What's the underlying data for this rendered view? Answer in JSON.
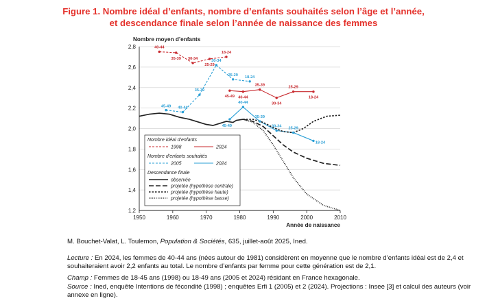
{
  "figure": {
    "title_line1": "Figure 1. Nombre idéal d’enfants, nombre d’enfants souhaités selon l’âge et l’année,",
    "title_line2": "et descendance finale selon l’année de naissance des femmes"
  },
  "colors": {
    "title": "#e4312b",
    "ideal": "#c8282d",
    "souhaite": "#2a9fd6",
    "descendance": "#222222"
  },
  "chart_data": {
    "type": "line",
    "ylabel": "Nombre moyen d’enfants",
    "xlabel": "Année de naissance",
    "xlim": [
      1950,
      2010
    ],
    "ylim": [
      1.2,
      2.8
    ],
    "x_ticks": [
      "1950",
      "1960",
      "1970",
      "1980",
      "1990",
      "2000",
      "2010"
    ],
    "y_ticks": [
      "1,2",
      "1,4",
      "1,6",
      "1,8",
      "2,0",
      "2,2",
      "2,4",
      "2,6",
      "2,8"
    ],
    "legend": {
      "group1_title": "Nombre idéal d’enfants",
      "group2_title": "Nombre d’enfants souhaités",
      "group3_title": "Descendance finale",
      "ideal_1998": "1998",
      "ideal_2024": "2024",
      "souhaite_2005": "2005",
      "souhaite_2024": "2024",
      "observee": "observée",
      "proj_centrale": "projetée (hypothèse centrale)",
      "proj_haute": "projetée (hypothèse haute)",
      "proj_basse": "projetée (hypothèse basse)"
    },
    "series": [
      {
        "name": "1998",
        "group": "ideal",
        "style": "dashed",
        "color": "#c8282d",
        "points": [
          {
            "x": 1956,
            "y": 2.75,
            "label": "40-44"
          },
          {
            "x": 1961,
            "y": 2.74,
            "label": "35-39"
          },
          {
            "x": 1966,
            "y": 2.64,
            "label": "30-34"
          },
          {
            "x": 1971,
            "y": 2.68,
            "label": "25-29"
          },
          {
            "x": 1976,
            "y": 2.7,
            "label": "18-24"
          }
        ]
      },
      {
        "name": "2024",
        "group": "ideal",
        "style": "solid",
        "color": "#c8282d",
        "points": [
          {
            "x": 1977,
            "y": 2.37,
            "label": "45-49"
          },
          {
            "x": 1981,
            "y": 2.36,
            "label": "40-44"
          },
          {
            "x": 1986,
            "y": 2.38,
            "label": "35-39"
          },
          {
            "x": 1991,
            "y": 2.3,
            "label": "30-34"
          },
          {
            "x": 1996,
            "y": 2.36,
            "label": "25-29"
          },
          {
            "x": 2002,
            "y": 2.36,
            "label": "18-24"
          }
        ]
      },
      {
        "name": "2005",
        "group": "souhaite",
        "style": "dashed",
        "color": "#2a9fd6",
        "points": [
          {
            "x": 1958,
            "y": 2.18,
            "label": "45-49"
          },
          {
            "x": 1963,
            "y": 2.16,
            "label": "40-44"
          },
          {
            "x": 1968,
            "y": 2.33,
            "label": "35-39"
          },
          {
            "x": 1973,
            "y": 2.62,
            "label": "30-34"
          },
          {
            "x": 1978,
            "y": 2.48,
            "label": "25-29"
          },
          {
            "x": 1983,
            "y": 2.46,
            "label": "18-24"
          }
        ]
      },
      {
        "name": "2024",
        "group": "souhaite",
        "style": "solid",
        "color": "#2a9fd6",
        "points": [
          {
            "x": 1977,
            "y": 2.09,
            "label": "45-49"
          },
          {
            "x": 1981,
            "y": 2.21,
            "label": "40-44"
          },
          {
            "x": 1986,
            "y": 2.07,
            "label": "35-39"
          },
          {
            "x": 1991,
            "y": 1.98,
            "label": "30-34"
          },
          {
            "x": 1996,
            "y": 1.96,
            "label": "25-29"
          },
          {
            "x": 2002,
            "y": 1.88,
            "label": "18-24"
          }
        ]
      },
      {
        "name": "observée",
        "group": "descendance",
        "style": "solid",
        "color": "#222222",
        "points": [
          {
            "x": 1950,
            "y": 2.12
          },
          {
            "x": 1953,
            "y": 2.14
          },
          {
            "x": 1956,
            "y": 2.15
          },
          {
            "x": 1959,
            "y": 2.14
          },
          {
            "x": 1962,
            "y": 2.11
          },
          {
            "x": 1965,
            "y": 2.09
          },
          {
            "x": 1968,
            "y": 2.06
          },
          {
            "x": 1970,
            "y": 2.04
          },
          {
            "x": 1972,
            "y": 2.03
          },
          {
            "x": 1974,
            "y": 2.05
          },
          {
            "x": 1976,
            "y": 2.07
          },
          {
            "x": 1978,
            "y": 2.06
          },
          {
            "x": 1979,
            "y": 2.08
          },
          {
            "x": 1981,
            "y": 2.09
          }
        ]
      },
      {
        "name": "projetée (hypothèse centrale)",
        "group": "descendance",
        "style": "longdash",
        "color": "#222222",
        "points": [
          {
            "x": 1981,
            "y": 2.09
          },
          {
            "x": 1984,
            "y": 2.07
          },
          {
            "x": 1987,
            "y": 2.02
          },
          {
            "x": 1990,
            "y": 1.93
          },
          {
            "x": 1993,
            "y": 1.84
          },
          {
            "x": 1996,
            "y": 1.77
          },
          {
            "x": 2000,
            "y": 1.71
          },
          {
            "x": 2005,
            "y": 1.66
          },
          {
            "x": 2010,
            "y": 1.64
          }
        ]
      },
      {
        "name": "projetée (hypothèse haute)",
        "group": "descendance",
        "style": "shortdash",
        "color": "#222222",
        "points": [
          {
            "x": 1981,
            "y": 2.09
          },
          {
            "x": 1984,
            "y": 2.09
          },
          {
            "x": 1987,
            "y": 2.06
          },
          {
            "x": 1990,
            "y": 2.01
          },
          {
            "x": 1993,
            "y": 1.97
          },
          {
            "x": 1996,
            "y": 1.96
          },
          {
            "x": 1999,
            "y": 2.0
          },
          {
            "x": 2002,
            "y": 2.07
          },
          {
            "x": 2006,
            "y": 2.12
          },
          {
            "x": 2010,
            "y": 2.13
          }
        ]
      },
      {
        "name": "projetée (hypothèse basse)",
        "group": "descendance",
        "style": "dotted",
        "color": "#222222",
        "points": [
          {
            "x": 1981,
            "y": 2.09
          },
          {
            "x": 1984,
            "y": 2.06
          },
          {
            "x": 1987,
            "y": 1.98
          },
          {
            "x": 1990,
            "y": 1.84
          },
          {
            "x": 1993,
            "y": 1.68
          },
          {
            "x": 1996,
            "y": 1.52
          },
          {
            "x": 2000,
            "y": 1.36
          },
          {
            "x": 2005,
            "y": 1.25
          },
          {
            "x": 2010,
            "y": 1.2
          }
        ]
      }
    ]
  },
  "footer": {
    "citation_prefix": "M. Bouchet-Valat, L. Toulemon, ",
    "citation_journal": "Population & Sociétés",
    "citation_suffix": ", 635, juillet-août 2025, Ined.",
    "lecture_label": "Lecture :",
    "lecture_text": " En 2024, les femmes de 40-44 ans (nées autour de 1981) considèrent en moyenne que le nombre d’enfants idéal est de 2,4 et souhaiteraient avoir 2,2 enfants au total. Le nombre d’enfants par femme pour cette génération est de 2,1.",
    "champ_label": "Champ :",
    "champ_text": " Femmes de 18-45 ans (1998) ou 18-49 ans (2005 et 2024) résidant en France hexagonale.",
    "source_label": "Source :",
    "source_text": " Ined, enquête Intentions de fécondité (1998) ; enquêtes Erfi 1 (2005) et 2 (2024). Projections : Insee [3] et calcul des auteurs (voir annexe en ligne)."
  }
}
